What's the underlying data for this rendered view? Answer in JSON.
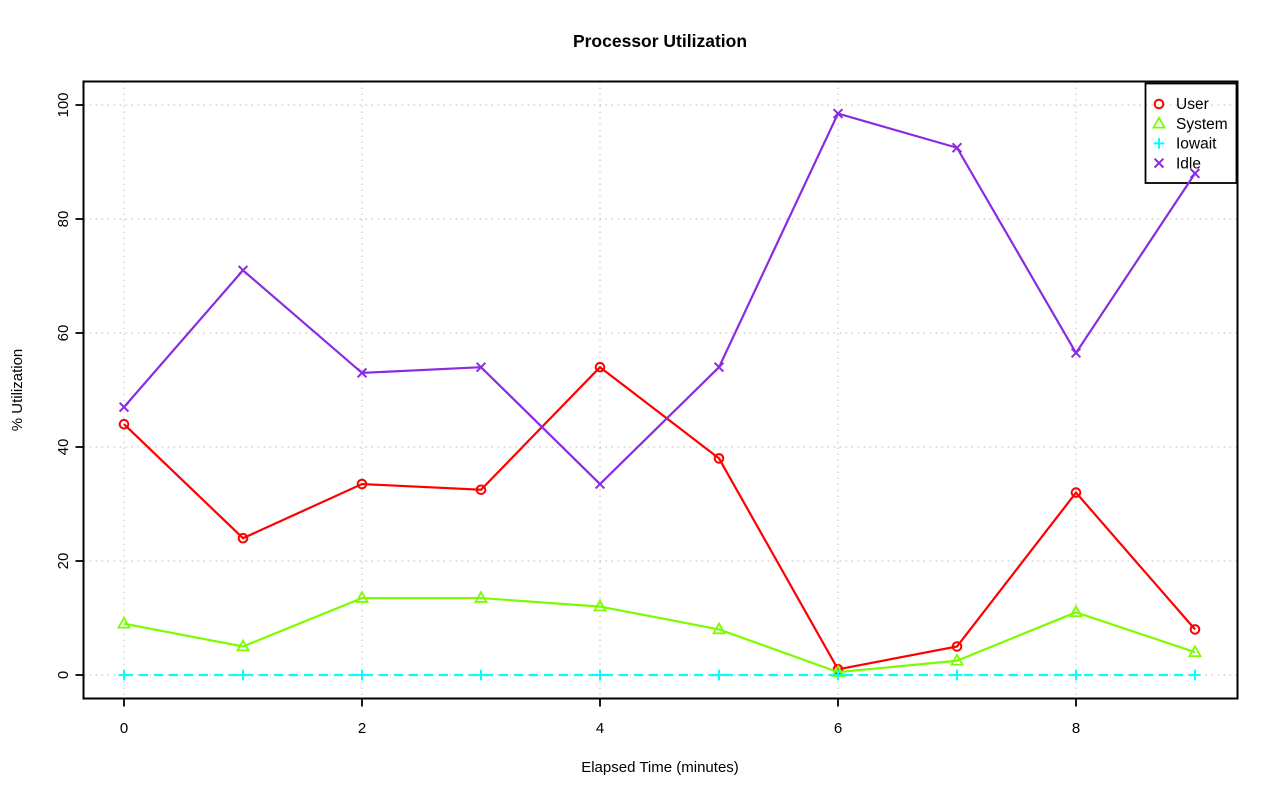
{
  "title": "Processor Utilization",
  "chart_data": {
    "type": "line",
    "title": "Processor Utilization",
    "xlabel": "Elapsed Time (minutes)",
    "ylabel": "% Utilization",
    "x": [
      0,
      1,
      2,
      3,
      4,
      5,
      6,
      7,
      8,
      9
    ],
    "xlim": [
      0,
      9
    ],
    "ylim": [
      0,
      100
    ],
    "x_ticks": [
      0,
      2,
      4,
      6,
      8
    ],
    "y_ticks": [
      0,
      20,
      40,
      60,
      80,
      100
    ],
    "grid": true,
    "grid_style": "dotted",
    "legend_position": "topright",
    "legend": [
      "User",
      "System",
      "Iowait",
      "Idle"
    ],
    "series": [
      {
        "name": "User",
        "marker": "circle",
        "line_style": "solid",
        "color": "#FF0000",
        "values": [
          44,
          24,
          33.5,
          32.5,
          54,
          38,
          1,
          5,
          32,
          8
        ]
      },
      {
        "name": "System",
        "marker": "triangle",
        "line_style": "solid",
        "color": "#7CFC00",
        "values": [
          9,
          5,
          13.5,
          13.5,
          12,
          8,
          0.5,
          2.5,
          11,
          4
        ]
      },
      {
        "name": "Iowait",
        "marker": "plus",
        "line_style": "dashed",
        "color": "#00FFFF",
        "values": [
          0,
          0,
          0,
          0,
          0,
          0,
          0,
          0,
          0,
          0
        ]
      },
      {
        "name": "Idle",
        "marker": "x",
        "line_style": "solid",
        "color": "#8A2BE2",
        "values": [
          47,
          71,
          53,
          54,
          33.5,
          54,
          98.5,
          92.5,
          56.5,
          88
        ]
      }
    ],
    "colors": {
      "background": "#FFFFFF",
      "grid": "#C8C8C8",
      "axis": "#000000",
      "text": "#000000"
    }
  }
}
